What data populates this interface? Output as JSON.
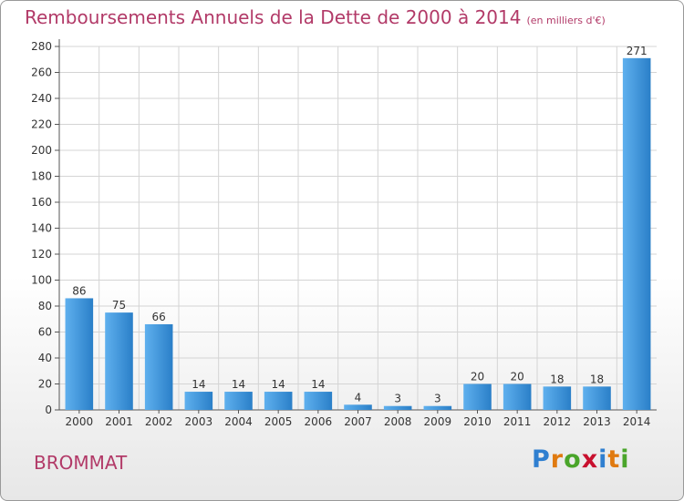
{
  "chart_data": {
    "type": "bar",
    "title": "Remboursements Annuels de la Dette de 2000 à 2014",
    "subtitle": "(en milliers d'€)",
    "categories": [
      "2000",
      "2001",
      "2002",
      "2003",
      "2004",
      "2005",
      "2006",
      "2007",
      "2008",
      "2009",
      "2010",
      "2011",
      "2012",
      "2013",
      "2014"
    ],
    "values": [
      86,
      75,
      66,
      14,
      14,
      14,
      14,
      4,
      3,
      3,
      20,
      20,
      18,
      18,
      271
    ],
    "data_labels": [
      "86",
      "75",
      "66",
      "14",
      "14",
      "14",
      "14",
      "4",
      "3",
      "3",
      "20",
      "20",
      "18",
      "18",
      "271"
    ],
    "ylim": [
      0,
      280
    ],
    "yticks": [
      0,
      20,
      40,
      60,
      80,
      100,
      120,
      140,
      160,
      180,
      200,
      220,
      240,
      260,
      280
    ],
    "grid": true,
    "bar_color": "#3a8fd4"
  },
  "footer": {
    "commune": "BROMMAT",
    "logo_letters": [
      "P",
      "r",
      "o",
      "x",
      "i",
      "t",
      "i"
    ],
    "logo_colors": [
      "#2f7fd0",
      "#e07a10",
      "#4aa52a",
      "#c8102e",
      "#2f7fd0",
      "#e07a10",
      "#4aa52a"
    ]
  }
}
